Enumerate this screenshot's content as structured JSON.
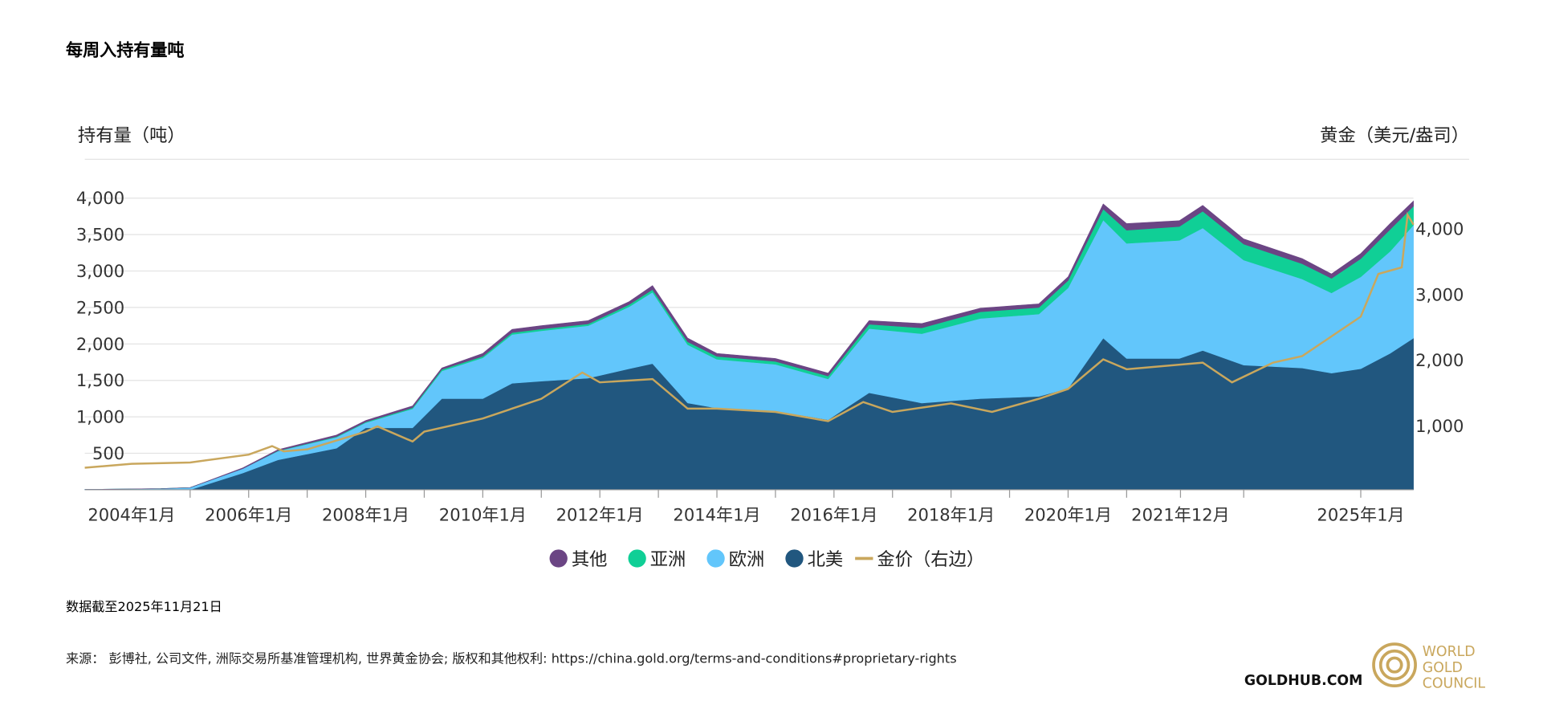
{
  "title": "每周入持有量吨",
  "left_axis_title": "持有量（吨）",
  "right_axis_title": "黄金（美元/盎司）",
  "footer": {
    "data_date": "数据截至2025年11月21日",
    "source": "来源： 彭博社, 公司文件, 洲际交易所基准管理机构, 世界黄金协会; 版权和其他权利: https://china.gold.org/terms-and-conditions#proprietary-rights",
    "goldhub": "GOLDHUB.COM",
    "logo_text": [
      "WORLD",
      "GOLD",
      "COUNCIL"
    ]
  },
  "chart_data": {
    "type": "area",
    "stacked": true,
    "title": "每周入持有量吨",
    "ylabel": "持有量（吨）",
    "y2label": "黄金（美元/盎司）",
    "ylim": [
      0,
      4000
    ],
    "y2lim": [
      0,
      4450
    ],
    "yticks": [
      500,
      1000,
      1500,
      2000,
      2500,
      3000,
      3500,
      4000
    ],
    "ytick_labels": [
      "500",
      "1,000",
      "1,500",
      "2,000",
      "2,500",
      "3,000",
      "3,500",
      "4,000"
    ],
    "y2ticks": [
      1000,
      2000,
      3000,
      4000
    ],
    "y2tick_labels": [
      "1,000",
      "2,000",
      "3,000",
      "4,000"
    ],
    "xlabels": [
      {
        "t": 2004.0,
        "label": "2004年1月"
      },
      {
        "t": 2006.0,
        "label": "2006年1月"
      },
      {
        "t": 2008.0,
        "label": "2008年1月"
      },
      {
        "t": 2010.0,
        "label": "2010年1月"
      },
      {
        "t": 2012.0,
        "label": "2012年1月"
      },
      {
        "t": 2014.0,
        "label": "2014年1月"
      },
      {
        "t": 2016.0,
        "label": "2016年1月"
      },
      {
        "t": 2018.0,
        "label": "2018年1月"
      },
      {
        "t": 2020.0,
        "label": "2020年1月"
      },
      {
        "t": 2021.92,
        "label": "2021年12月"
      },
      {
        "t": 2025.0,
        "label": "2025年1月"
      }
    ],
    "xticks": [
      2005,
      2006,
      2007,
      2008,
      2009,
      2010,
      2011,
      2012,
      2013,
      2014,
      2015,
      2016,
      2017,
      2018,
      2019,
      2020,
      2021,
      2021.92,
      2023,
      2025
    ],
    "x": [
      2003.2,
      2004.5,
      2005.0,
      2005.9,
      2006.5,
      2007.5,
      2008.0,
      2008.8,
      2009.3,
      2010.0,
      2010.5,
      2011.0,
      2011.8,
      2012.5,
      2012.9,
      2013.5,
      2014.0,
      2015.0,
      2015.9,
      2016.6,
      2017.5,
      2018.5,
      2019.5,
      2020.0,
      2020.6,
      2021.0,
      2021.9,
      2022.3,
      2023.0,
      2024.0,
      2024.5,
      2025.0,
      2025.5,
      2025.9
    ],
    "legend_position": "bottom",
    "series": [
      {
        "name": "北美",
        "color": "#21577f",
        "values": [
          0,
          0,
          0,
          230,
          410,
          570,
          850,
          850,
          1250,
          1250,
          1460,
          1490,
          1530,
          1660,
          1730,
          1190,
          1120,
          1080,
          960,
          1330,
          1190,
          1250,
          1280,
          1390,
          2080,
          1800,
          1800,
          1910,
          1710,
          1670,
          1600,
          1660,
          1870,
          2080
        ]
      },
      {
        "name": "欧洲",
        "color": "#62c6fb",
        "values": [
          5,
          15,
          30,
          60,
          120,
          150,
          70,
          260,
          380,
          560,
          670,
          690,
          720,
          850,
          980,
          800,
          670,
          640,
          560,
          880,
          950,
          1100,
          1130,
          1380,
          1620,
          1580,
          1620,
          1680,
          1440,
          1220,
          1100,
          1260,
          1400,
          1550
        ]
      },
      {
        "name": "亚洲",
        "color": "#10cf96",
        "values": [
          0,
          0,
          0,
          0,
          5,
          10,
          10,
          15,
          20,
          20,
          25,
          25,
          25,
          30,
          35,
          40,
          40,
          40,
          40,
          60,
          80,
          90,
          90,
          100,
          150,
          180,
          190,
          230,
          220,
          210,
          200,
          250,
          300,
          260
        ]
      },
      {
        "name": "其他",
        "color": "#6b4584",
        "values": [
          0,
          0,
          0,
          10,
          15,
          20,
          20,
          25,
          20,
          40,
          45,
          45,
          45,
          40,
          55,
          50,
          40,
          40,
          40,
          50,
          60,
          50,
          50,
          50,
          70,
          90,
          80,
          80,
          70,
          70,
          60,
          70,
          80,
          70
        ]
      }
    ],
    "price_series": {
      "name": "金价（右边）",
      "color": "#c9a75d",
      "x": [
        2003.2,
        2004.0,
        2005.0,
        2006.0,
        2006.4,
        2006.6,
        2007.0,
        2008.0,
        2008.2,
        2008.8,
        2009.0,
        2010.0,
        2011.0,
        2011.7,
        2012.0,
        2012.9,
        2013.5,
        2014.0,
        2015.0,
        2015.9,
        2016.5,
        2017.0,
        2018.0,
        2018.7,
        2019.5,
        2020.0,
        2020.6,
        2021.0,
        2022.3,
        2022.8,
        2023.5,
        2024.0,
        2024.5,
        2025.0,
        2025.3,
        2025.7,
        2025.8,
        2025.9
      ],
      "values": [
        350,
        410,
        430,
        550,
        680,
        600,
        630,
        900,
        980,
        750,
        900,
        1100,
        1400,
        1800,
        1650,
        1700,
        1250,
        1250,
        1200,
        1060,
        1350,
        1200,
        1330,
        1200,
        1400,
        1550,
        2000,
        1850,
        1950,
        1650,
        1950,
        2050,
        2350,
        2650,
        3300,
        3400,
        4200,
        4050
      ]
    },
    "legend": [
      {
        "label": "其他",
        "color": "#6b4584",
        "shape": "dot"
      },
      {
        "label": "亚洲",
        "color": "#10cf96",
        "shape": "dot"
      },
      {
        "label": "欧洲",
        "color": "#62c6fb",
        "shape": "dot"
      },
      {
        "label": "北美",
        "color": "#21577f",
        "shape": "dot"
      },
      {
        "label": "金价（右边）",
        "color": "#c9a75d",
        "shape": "line"
      }
    ]
  }
}
